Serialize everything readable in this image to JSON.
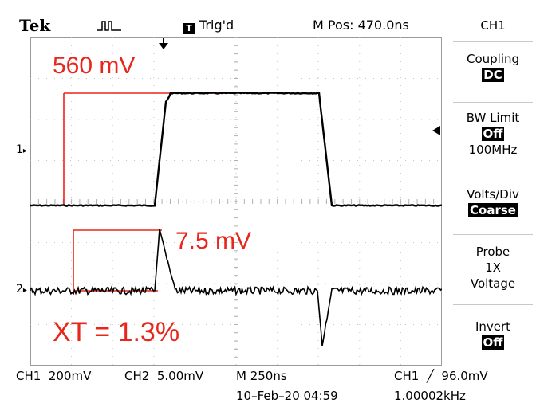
{
  "header": {
    "brand": "Tek",
    "trigger_status": "Trig'd",
    "trigger_glyph": "T",
    "position": "M Pos: 470.0ns"
  },
  "menu": {
    "channel": "CH1",
    "coupling": {
      "label": "Coupling",
      "value": "DC"
    },
    "bw_limit": {
      "label": "BW Limit",
      "value": "Off",
      "extra": "100MHz"
    },
    "volts_div": {
      "label": "Volts/Div",
      "value": "Coarse"
    },
    "probe": {
      "label": "Probe",
      "line2": "1X",
      "line3": "Voltage"
    },
    "invert": {
      "label": "Invert",
      "value": "Off"
    }
  },
  "markers": {
    "ch1": "1",
    "ch2": "2"
  },
  "annotations": {
    "ch1_amplitude": "560 mV",
    "ch2_amplitude": "7.5 mV",
    "crosstalk": "XT = 1.3%"
  },
  "status": {
    "ch1_scale": "CH1  200mV",
    "ch2_scale": "CH2  5.00mV",
    "timebase": "M 250ns",
    "trigger": "CH1  ╱  96.0mV",
    "date": "10–Feb–20 04:59",
    "frequency": "1.00002kHz"
  },
  "colors": {
    "annotation": "#e8261c",
    "trace": "#000000",
    "grid": "#b8b8b8"
  }
}
